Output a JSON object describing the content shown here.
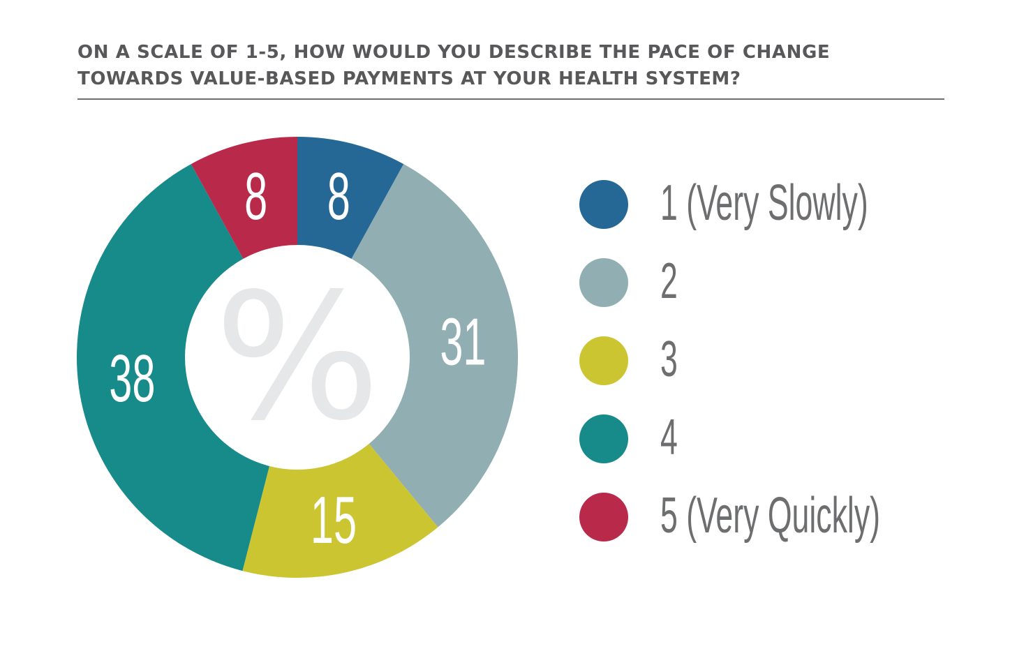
{
  "chart_data": {
    "type": "pie",
    "title": "ON A SCALE OF 1-5, HOW WOULD YOU DESCRIBE THE PACE OF CHANGE TOWARDS VALUE-BASED PAYMENTS AT YOUR HEALTH SYSTEM?",
    "title_lines": [
      "ON A SCALE OF 1-5, HOW WOULD YOU DESCRIBE THE PACE OF CHANGE",
      "TOWARDS VALUE-BASED PAYMENTS AT YOUR HEALTH SYSTEM?"
    ],
    "center_label": "%",
    "donut": true,
    "legend_position": "right",
    "slices": [
      {
        "label": "1 (Very Slowly)",
        "value": 8,
        "color": "#256795"
      },
      {
        "label": "2",
        "value": 31,
        "color": "#91afb2"
      },
      {
        "label": "3",
        "value": 15,
        "color": "#ccc532"
      },
      {
        "label": "4",
        "value": 38,
        "color": "#178a8a"
      },
      {
        "label": "5 (Very Quickly)",
        "value": 8,
        "color": "#b9294a"
      }
    ]
  }
}
